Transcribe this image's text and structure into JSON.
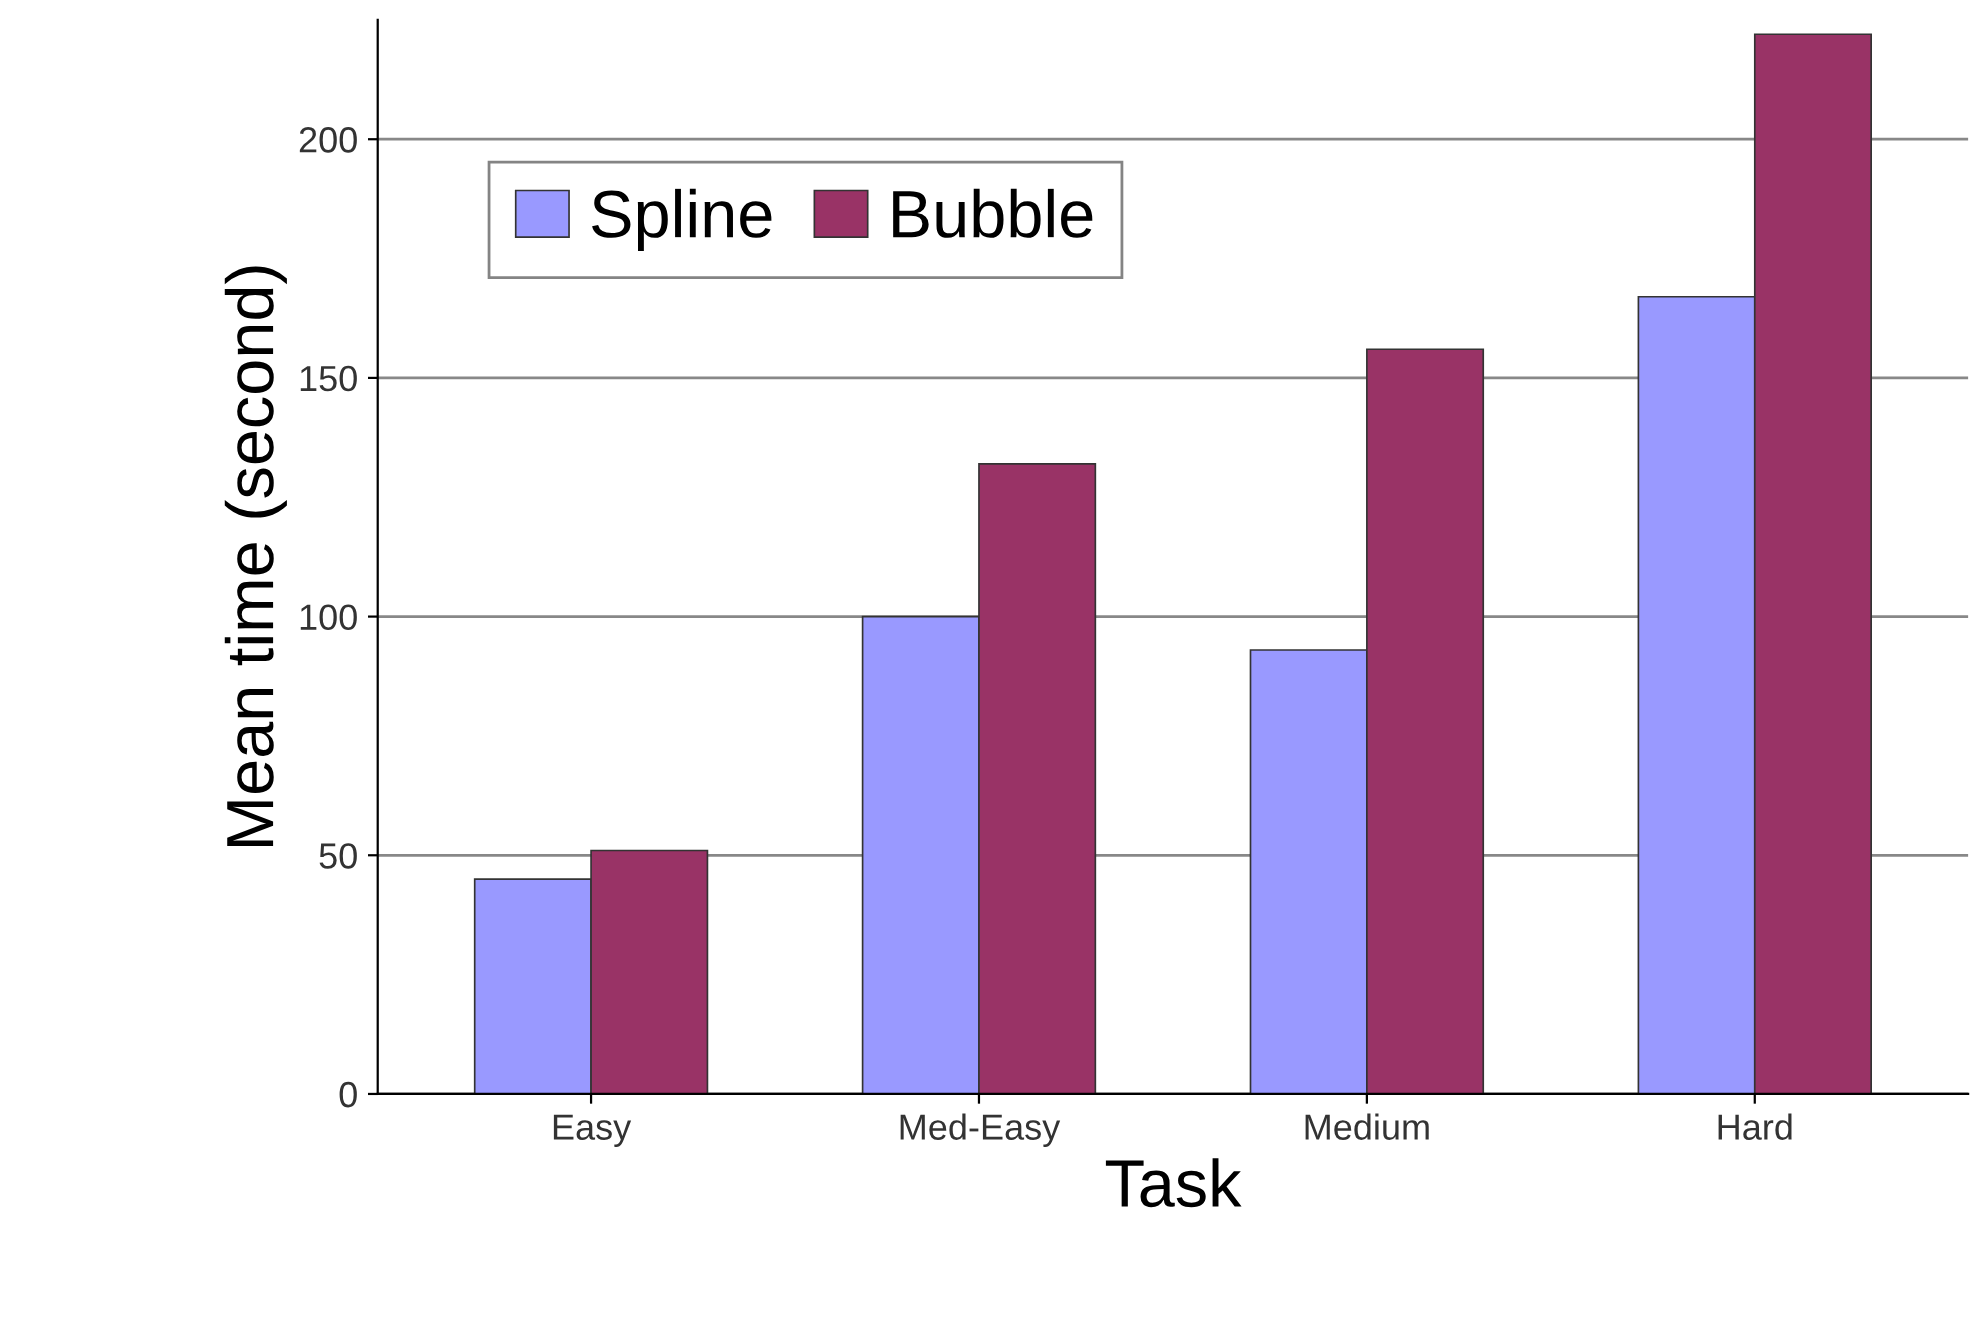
{
  "chart_data": {
    "type": "bar",
    "xlabel": "Task",
    "ylabel": "Mean time (second)",
    "categories": [
      "Easy",
      "Med-Easy",
      "Medium",
      "Hard"
    ],
    "series": [
      {
        "name": "Spline",
        "color": "#9999ff",
        "values": [
          45,
          100,
          93,
          167
        ]
      },
      {
        "name": "Bubble",
        "color": "#993366",
        "values": [
          51,
          132,
          156,
          222
        ]
      }
    ],
    "ylim": [
      0,
      225
    ],
    "yticks": [
      0,
      50,
      100,
      150,
      200
    ],
    "grid": "y",
    "legend": "top left"
  }
}
